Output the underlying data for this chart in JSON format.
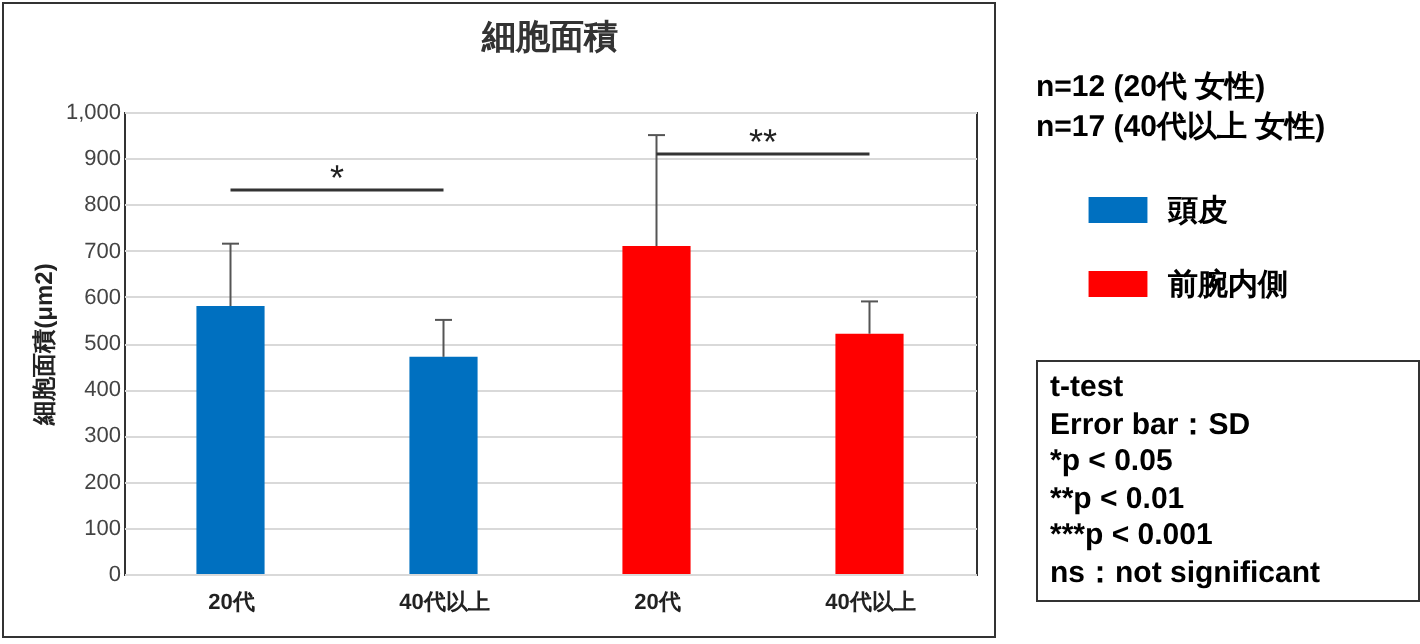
{
  "chart_data": {
    "type": "bar",
    "title": "細胞面積",
    "ylabel": "細胞面積(μm2)",
    "categories": [
      "20代",
      "40代以上",
      "20代",
      "40代以上"
    ],
    "series": [
      {
        "name": "頭皮",
        "color": "#0070c0",
        "values": [
          580,
          470,
          null,
          null
        ],
        "errors": [
          [
            580,
            715
          ],
          [
            470,
            550
          ],
          null,
          null
        ]
      },
      {
        "name": "前腕内側",
        "color": "#ff0000",
        "values": [
          null,
          null,
          710,
          520
        ],
        "errors": [
          null,
          null,
          [
            710,
            950
          ],
          [
            520,
            590
          ]
        ]
      }
    ],
    "ylim": [
      0,
      1000
    ],
    "yticks": [
      0,
      100,
      200,
      300,
      400,
      500,
      600,
      700,
      800,
      900,
      {
        "value": 1000,
        "label": "1,000"
      }
    ],
    "grid": "y",
    "legend": "right",
    "annotations": [
      "*",
      "**",
      "n=12 (20代 女性)",
      "n=17 (40代以上 女性)",
      "t-test",
      "Error bar：SD",
      "*p < 0.05",
      "**p < 0.01",
      "***p < 0.001",
      "ns：not significant"
    ]
  }
}
